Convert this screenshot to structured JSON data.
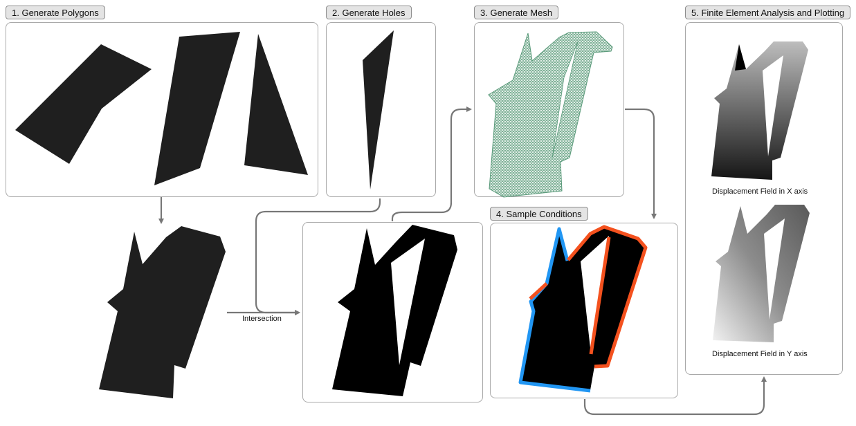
{
  "steps": {
    "s1": "1. Generate Polygons",
    "s2": "2. Generate Holes",
    "s3": "3. Generate Mesh",
    "s4": "4. Sample Conditions",
    "s5": "5. Finite Element Analysis and Plotting"
  },
  "intersection_label": "Intersection",
  "captions": {
    "x": "Displacement Field in X axis",
    "y": "Displacement Field in Y axis"
  },
  "colors": {
    "shape": "#1f1f1f",
    "shape_black": "#000000",
    "mesh": "#5a9a7a",
    "boundary_blue": "#2196f3",
    "boundary_red": "#f4511e",
    "arrow": "#777777"
  }
}
